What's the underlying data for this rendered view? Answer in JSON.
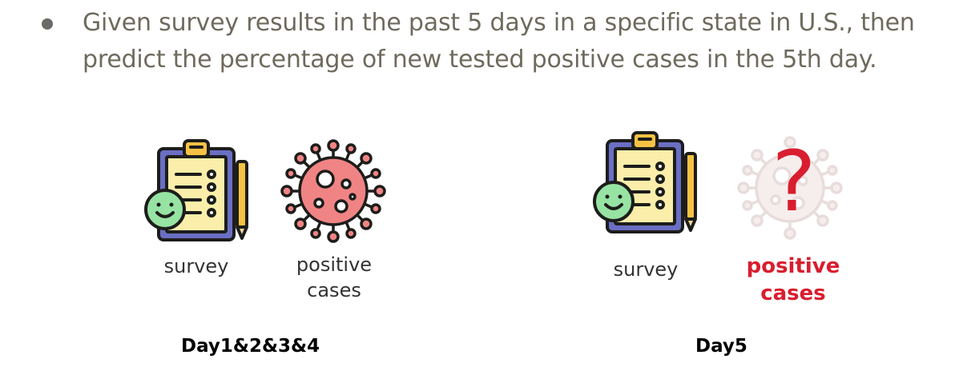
{
  "bullet": {
    "text": "Given survey results in the past 5 days in a specific state in U.S., then predict the percentage of new tested positive cases in the 5th day."
  },
  "groups": [
    {
      "survey_label": "survey",
      "cases_label_line1": "positive",
      "cases_label_line2": "cases",
      "day_label": "Day1&2&3&4"
    },
    {
      "survey_label": "survey",
      "cases_label_line1": "positive",
      "cases_label_line2": "cases",
      "day_label": "Day5",
      "question_mark": "?"
    }
  ],
  "colors": {
    "text_gray": "#6f6a5d",
    "clipboard_board": "#6a6fc4",
    "clipboard_paper": "#fbeeaa",
    "clip": "#f6c244",
    "face": "#97e3a3",
    "pencil": "#f6c244",
    "virus": "#f08484",
    "virus_faded": "#f3e6e6",
    "question": "#d81e2f",
    "outline": "#1d1d1b"
  },
  "icons": [
    "clipboard-survey-icon",
    "virus-icon",
    "faded-virus-icon"
  ]
}
